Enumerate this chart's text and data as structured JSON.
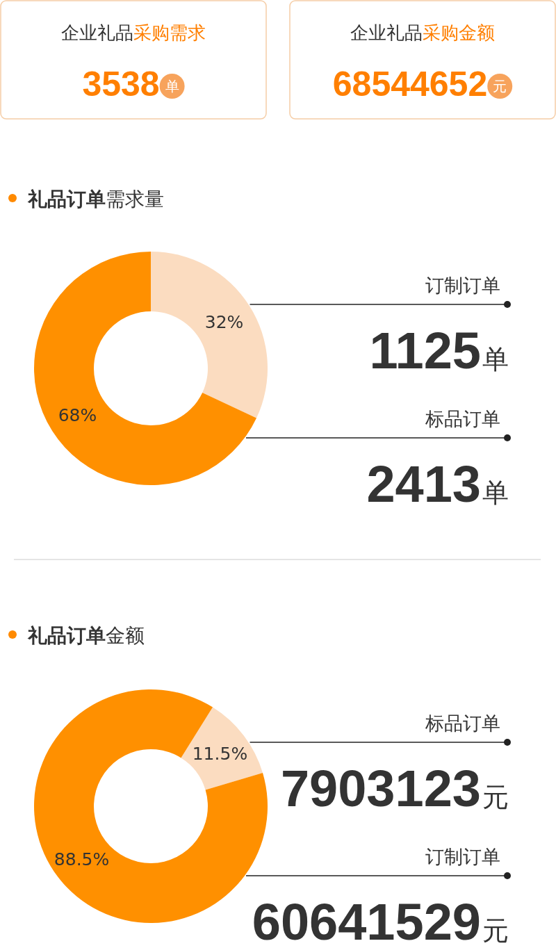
{
  "chart_data": [
    {
      "type": "other",
      "title": "企业礼品",
      "subtitle": "采购需求",
      "values": [
        3538
      ],
      "data_labels": true,
      "annotations": [
        "单"
      ]
    },
    {
      "type": "other",
      "title": "企业礼品",
      "subtitle": "采购金额",
      "values": [
        68544652
      ],
      "data_labels": true,
      "annotations": [
        "元"
      ]
    },
    {
      "type": "donut",
      "title": "**礼品订单**需求量",
      "categories": [
        "订制订单",
        "标品订单"
      ],
      "values": [
        32,
        68
      ],
      "value_labels": [
        "32%",
        "68%"
      ],
      "colors": [
        "#fbdcc0",
        "#ff9000"
      ],
      "annotations": [
        "1125单",
        "2413单"
      ]
    },
    {
      "type": "donut",
      "title": "**礼品订单**金额",
      "categories": [
        "标品订单",
        "订制订单"
      ],
      "values": [
        11.5,
        88.5
      ],
      "value_labels": [
        "11.5%",
        "88.5%"
      ],
      "colors": [
        "#fbdcc0",
        "#ff9000"
      ],
      "annotations": [
        "7903123元",
        "60641529元"
      ]
    }
  ]
}
